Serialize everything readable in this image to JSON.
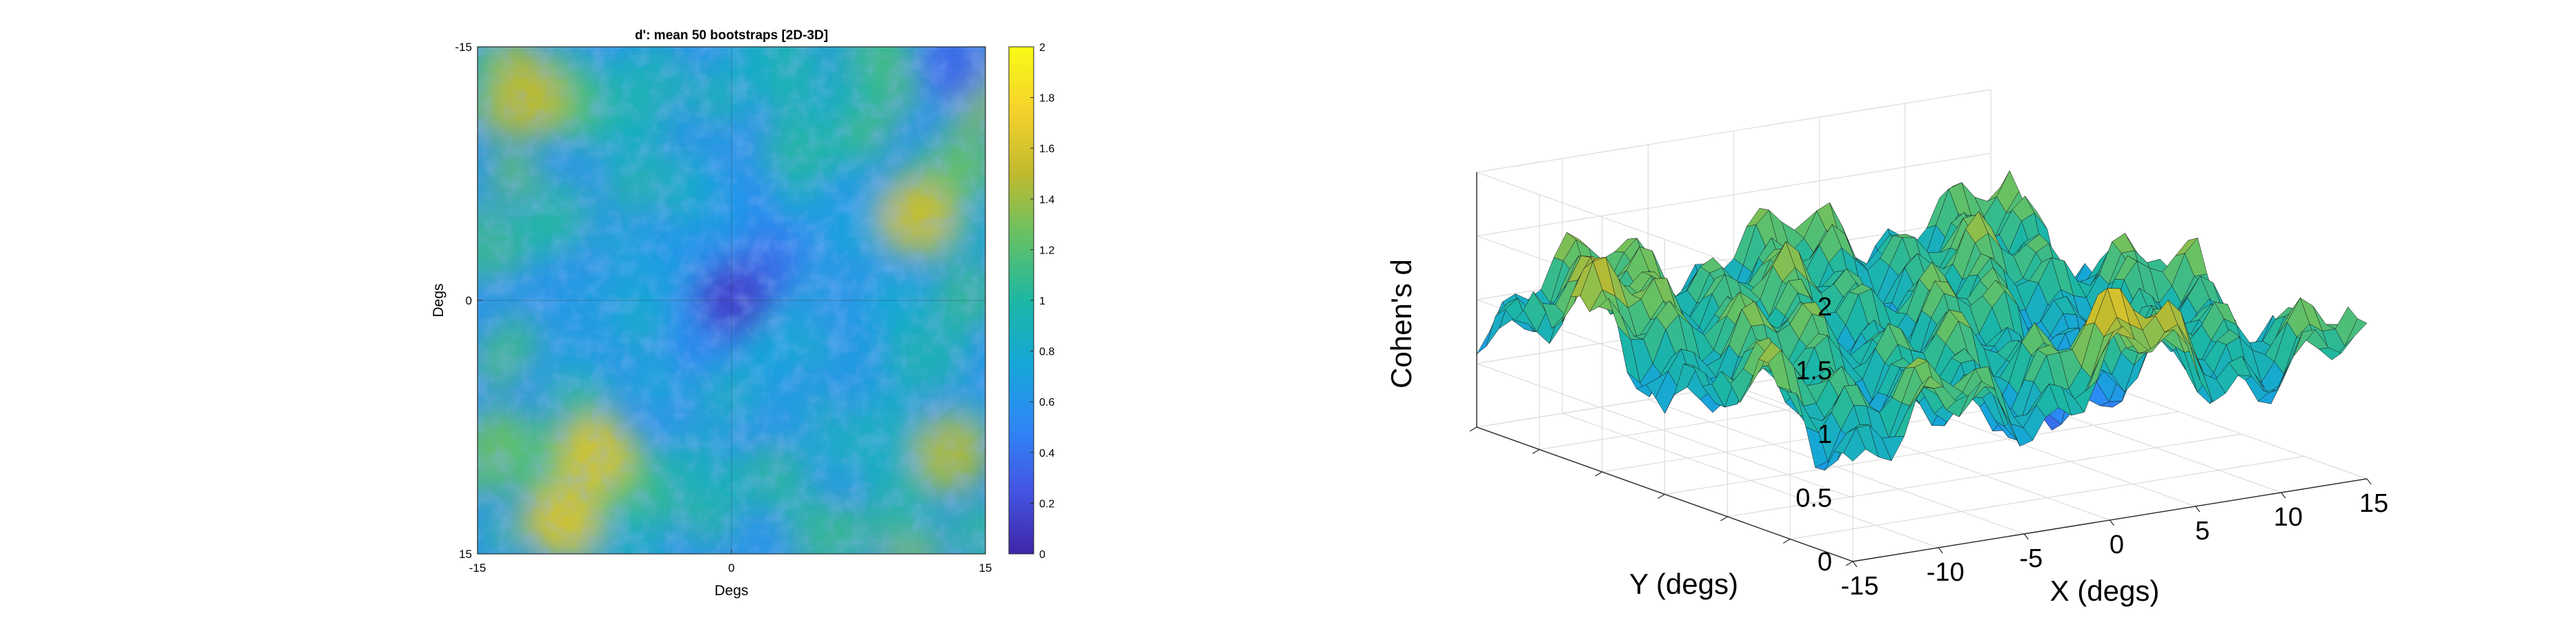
{
  "chart_data": [
    {
      "type": "heatmap",
      "title": "d': mean 50 bootstraps [2D-3D]",
      "xlabel": "Degs",
      "ylabel": "Degs",
      "xlim": [
        -15,
        15
      ],
      "ylim": [
        -15,
        15
      ],
      "y_direction": "reversed",
      "xticks": [
        "-15",
        "0",
        "15"
      ],
      "yticks": [
        "-15",
        "0",
        "15"
      ],
      "colorbar": {
        "min": 0,
        "max": 2,
        "ticks": [
          "0",
          "0.2",
          "0.4",
          "0.6",
          "0.8",
          "1",
          "1.2",
          "1.4",
          "1.6",
          "1.8",
          "2"
        ]
      },
      "colormap": "parula",
      "colormap_stops": [
        "#3e26a8",
        "#4455e3",
        "#2e87f7",
        "#16a7d8",
        "#1cb7a4",
        "#64c165",
        "#c1ba2e",
        "#f5d22d",
        "#f9fb15"
      ],
      "notable_regions": [
        {
          "x": 0,
          "y": 0,
          "value": 0.15,
          "note": "lowest values near the center"
        },
        {
          "x": 13,
          "y": -14,
          "value": 0.35,
          "note": "low corner at top-right"
        },
        {
          "x": -12,
          "y": -12,
          "value": 1.5
        },
        {
          "x": -8,
          "y": 9,
          "value": 1.6
        },
        {
          "x": -10,
          "y": 13,
          "value": 1.6
        },
        {
          "x": 11,
          "y": -5,
          "value": 1.55
        },
        {
          "x": 13,
          "y": 9,
          "value": 1.45
        }
      ]
    },
    {
      "type": "surface",
      "zlabel": "Cohen's d",
      "xlabel": "X (degs)",
      "ylabel": "Y (degs)",
      "zlim": [
        0,
        2
      ],
      "zticks": [
        "0",
        "0.5",
        "1",
        "1.5",
        "2"
      ],
      "xticks": [
        "-15",
        "-10",
        "-5",
        "0",
        "5",
        "10",
        "15"
      ],
      "xlim": [
        -15,
        15
      ],
      "ylim": [
        -15,
        15
      ],
      "grid": true,
      "colormap": "parula"
    }
  ]
}
